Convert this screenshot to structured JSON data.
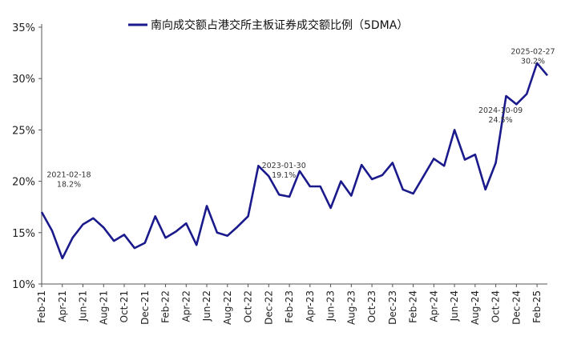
{
  "chart_data": {
    "type": "line",
    "title": "",
    "xlabel": "",
    "ylabel": "",
    "ylim": [
      10,
      35
    ],
    "y_ticks": [
      "10%",
      "15%",
      "20%",
      "25%",
      "30%",
      "35%"
    ],
    "y_tick_values": [
      10,
      15,
      20,
      25,
      30,
      35
    ],
    "x_tick_labels": [
      "Feb-21",
      "Apr-21",
      "Jun-21",
      "Aug-21",
      "Oct-21",
      "Dec-21",
      "Feb-22",
      "Apr-22",
      "Jun-22",
      "Aug-22",
      "Oct-22",
      "Dec-22",
      "Feb-23",
      "Apr-23",
      "Jun-23",
      "Aug-23",
      "Oct-23",
      "Dec-23",
      "Feb-24",
      "Apr-24",
      "Jun-24",
      "Aug-24",
      "Oct-24",
      "Dec-24",
      "Feb-25"
    ],
    "grid": false,
    "legend_position": "top",
    "series_color": "#1a1a8c",
    "series": [
      {
        "name": "南向成交额占港交所主板证券成交额比例（5DMA）",
        "x": [
          "Feb-21",
          "Mar-21",
          "Apr-21",
          "May-21",
          "Jun-21",
          "Jul-21",
          "Aug-21",
          "Sep-21",
          "Oct-21",
          "Nov-21",
          "Dec-21",
          "Jan-22",
          "Feb-22",
          "Mar-22",
          "Apr-22",
          "May-22",
          "Jun-22",
          "Jul-22",
          "Aug-22",
          "Sep-22",
          "Oct-22",
          "Nov-22",
          "Dec-22",
          "Jan-23",
          "Feb-23",
          "Mar-23",
          "Apr-23",
          "May-23",
          "Jun-23",
          "Jul-23",
          "Aug-23",
          "Sep-23",
          "Oct-23",
          "Nov-23",
          "Dec-23",
          "Jan-24",
          "Feb-24",
          "Mar-24",
          "Apr-24",
          "May-24",
          "Jun-24",
          "Jul-24",
          "Aug-24",
          "Sep-24",
          "Oct-24",
          "Nov-24",
          "Dec-24",
          "Jan-25",
          "Feb-25",
          "Mar-25"
        ],
        "values": [
          17.0,
          15.2,
          12.5,
          14.5,
          15.8,
          16.4,
          15.5,
          14.2,
          14.8,
          13.5,
          14.0,
          16.6,
          14.5,
          15.1,
          15.9,
          13.8,
          17.6,
          15.0,
          14.7,
          15.6,
          16.6,
          21.5,
          20.5,
          18.7,
          18.5,
          21.0,
          19.5,
          19.5,
          17.4,
          20.0,
          18.6,
          21.6,
          20.2,
          20.6,
          21.8,
          19.2,
          18.8,
          20.5,
          22.2,
          21.5,
          25.0,
          22.1,
          22.6,
          19.2,
          21.8,
          28.3,
          27.5,
          28.5,
          31.5,
          30.3
        ]
      }
    ],
    "annotations": [
      {
        "date": "2021-02-18",
        "value": "18.2%",
        "x": "Feb-21",
        "y": 18.2
      },
      {
        "date": "2023-01-30",
        "value": "19.1%",
        "x": "Jan-23",
        "y": 19.1
      },
      {
        "date": "2024-10-09",
        "value": "24.5%",
        "x": "Oct-24",
        "y": 24.5
      },
      {
        "date": "2025-02-27",
        "value": "30.2%",
        "x": "Feb-25",
        "y": 30.2
      }
    ]
  }
}
